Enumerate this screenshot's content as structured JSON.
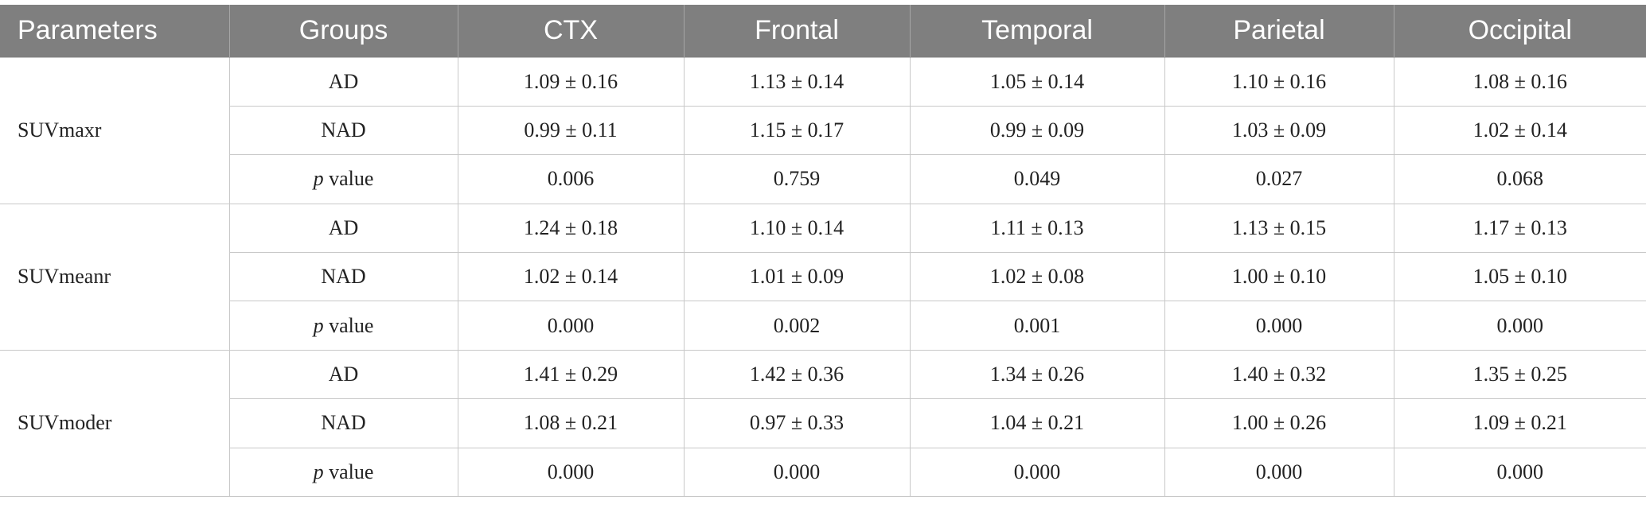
{
  "table": {
    "headers": [
      "Parameters",
      "Groups",
      "CTX",
      "Frontal",
      "Temporal",
      "Parietal",
      "Occipital"
    ],
    "blocks": [
      {
        "parameter": "SUVmaxr",
        "rows": [
          {
            "group": "AD",
            "values": [
              "1.09 ± 0.16",
              "1.13 ± 0.14",
              "1.05 ± 0.14",
              "1.10 ± 0.16",
              "1.08 ± 0.16"
            ]
          },
          {
            "group": "NAD",
            "values": [
              "0.99 ± 0.11",
              "1.15 ± 0.17",
              "0.99 ± 0.09",
              "1.03 ± 0.09",
              "1.02 ± 0.14"
            ]
          },
          {
            "group_italic": "p",
            "group": " value",
            "values": [
              "0.006",
              "0.759",
              "0.049",
              "0.027",
              "0.068"
            ]
          }
        ]
      },
      {
        "parameter": "SUVmeanr",
        "rows": [
          {
            "group": "AD",
            "values": [
              "1.24 ± 0.18",
              "1.10 ± 0.14",
              "1.11 ± 0.13",
              "1.13 ± 0.15",
              "1.17 ± 0.13"
            ]
          },
          {
            "group": "NAD",
            "values": [
              "1.02 ± 0.14",
              "1.01 ± 0.09",
              "1.02 ± 0.08",
              "1.00 ± 0.10",
              "1.05 ± 0.10"
            ]
          },
          {
            "group_italic": "p",
            "group": " value",
            "values": [
              "0.000",
              "0.002",
              "0.001",
              "0.000",
              "0.000"
            ]
          }
        ]
      },
      {
        "parameter": "SUVmoder",
        "rows": [
          {
            "group": "AD",
            "values": [
              "1.41 ± 0.29",
              "1.42 ± 0.36",
              "1.34 ± 0.26",
              "1.40 ± 0.32",
              "1.35 ± 0.25"
            ]
          },
          {
            "group": "NAD",
            "values": [
              "1.08 ± 0.21",
              "0.97 ± 0.33",
              "1.04 ± 0.21",
              "1.00 ± 0.26",
              "1.09 ± 0.21"
            ]
          },
          {
            "group_italic": "p",
            "group": " value",
            "values": [
              "0.000",
              "0.000",
              "0.000",
              "0.000",
              "0.000"
            ]
          }
        ]
      }
    ]
  }
}
